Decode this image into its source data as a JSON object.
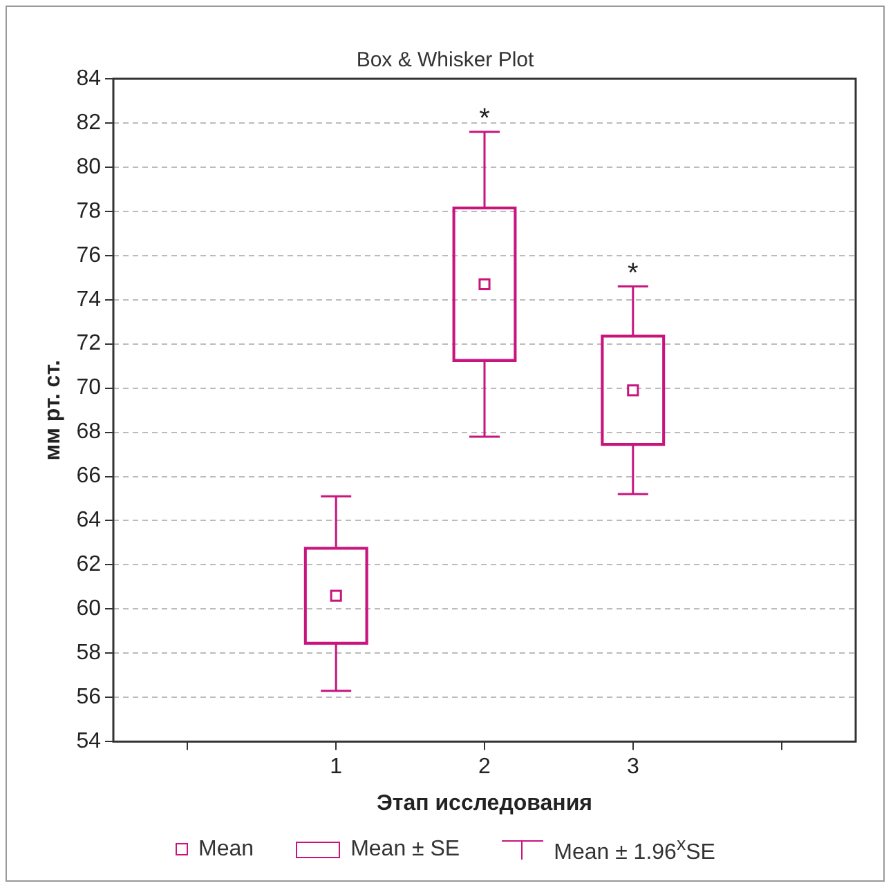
{
  "chart_data": {
    "type": "box",
    "title": "Box & Whisker Plot",
    "xlabel": "Этап исследования",
    "ylabel": "мм рт. ст.",
    "categories": [
      null,
      "1",
      "2",
      "3",
      null
    ],
    "series": [
      {
        "color": "#c8157e",
        "boxes": [
          null,
          {
            "low": 56.3,
            "q1": 58.4,
            "q3": 62.8,
            "high": 65.1,
            "mean": 60.6
          },
          {
            "low": 67.8,
            "q1": 71.2,
            "q3": 78.2,
            "high": 81.6,
            "mean": 74.7
          },
          {
            "low": 65.2,
            "q1": 67.4,
            "q3": 72.4,
            "high": 74.6,
            "mean": 69.9
          },
          null
        ]
      }
    ],
    "ylim": [
      54,
      84
    ],
    "yticks": [
      54,
      56,
      58,
      60,
      62,
      64,
      66,
      68,
      70,
      72,
      74,
      76,
      78,
      80,
      82,
      84
    ],
    "grid": "y",
    "marker": "square",
    "annotations": [
      {
        "text": "*",
        "x": "2",
        "y": 81.6
      },
      {
        "text": "*",
        "x": "3",
        "y": 74.6
      },
      "Mean",
      "Mean ± SE",
      "Mean ± 1.96$^{x}$SE"
    ]
  }
}
